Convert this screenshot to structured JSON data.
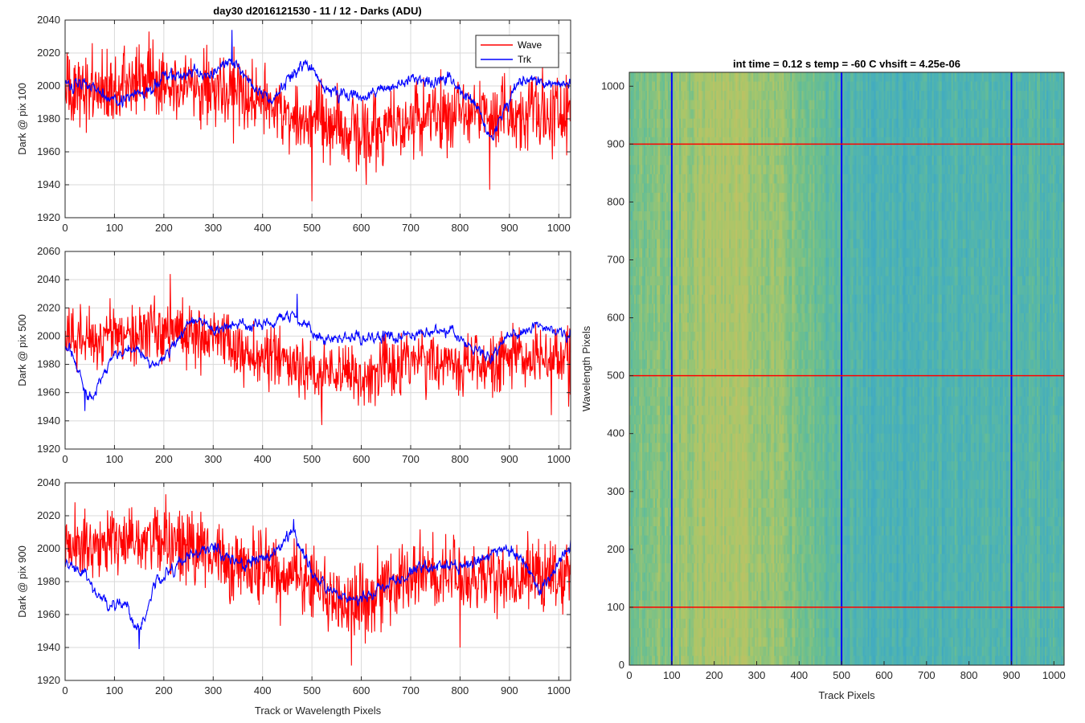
{
  "figure_title": "day30 d2016121530 - 11 / 12 - Darks (ADU)",
  "colors": {
    "wave": "#ff0000",
    "trk": "#0000ff",
    "grid": "#d9d9d9"
  },
  "chart_data": [
    {
      "type": "line",
      "ylabel": "Dark @ pix 100",
      "xlabel": "",
      "xlim": [
        0,
        1024
      ],
      "ylim": [
        1920,
        2040
      ],
      "xticks": [
        0,
        100,
        200,
        300,
        400,
        500,
        600,
        700,
        800,
        900,
        1000
      ],
      "yticks": [
        1920,
        1940,
        1960,
        1980,
        2000,
        2020,
        2040
      ],
      "grid": true,
      "legend": "top-right",
      "series": [
        {
          "name": "Wave",
          "color": "#ff0000",
          "mean": [
            [
              0,
              1996
            ],
            [
              100,
              2000
            ],
            [
              200,
              2004
            ],
            [
              300,
              2000
            ],
            [
              400,
              1990
            ],
            [
              500,
              1978
            ],
            [
              600,
              1970
            ],
            [
              700,
              1980
            ],
            [
              800,
              1985
            ],
            [
              900,
              1985
            ],
            [
              1024,
              1985
            ]
          ],
          "noise": 11,
          "spikes": [
            [
              55,
              2026
            ],
            [
              170,
              2033
            ],
            [
              500,
              1930
            ],
            [
              610,
              1940
            ],
            [
              860,
              1937
            ]
          ]
        },
        {
          "name": "Trk",
          "color": "#0000ff",
          "mean": [
            [
              0,
              2000
            ],
            [
              40,
              2003
            ],
            [
              100,
              1992
            ],
            [
              160,
              1995
            ],
            [
              200,
              2005
            ],
            [
              250,
              2007
            ],
            [
              300,
              2008
            ],
            [
              340,
              2015
            ],
            [
              380,
              2000
            ],
            [
              420,
              1992
            ],
            [
              470,
              2010
            ],
            [
              500,
              2012
            ],
            [
              530,
              1997
            ],
            [
              600,
              1993
            ],
            [
              700,
              2005
            ],
            [
              780,
              2003
            ],
            [
              820,
              1992
            ],
            [
              840,
              1985
            ],
            [
              860,
              1965
            ],
            [
              880,
              1978
            ],
            [
              920,
              2003
            ],
            [
              1024,
              2002
            ]
          ],
          "noise": 4,
          "spikes": [
            [
              338,
              2034
            ]
          ]
        }
      ]
    },
    {
      "type": "line",
      "ylabel": "Dark @ pix 500",
      "xlabel": "",
      "xlim": [
        0,
        1024
      ],
      "ylim": [
        1920,
        2060
      ],
      "xticks": [
        0,
        100,
        200,
        300,
        400,
        500,
        600,
        700,
        800,
        900,
        1000
      ],
      "yticks": [
        1920,
        1940,
        1960,
        1980,
        2000,
        2020,
        2040,
        2060
      ],
      "grid": true,
      "series": [
        {
          "name": "Wave",
          "color": "#ff0000",
          "mean": [
            [
              0,
              1997
            ],
            [
              100,
              2000
            ],
            [
              200,
              2005
            ],
            [
              300,
              2000
            ],
            [
              400,
              1985
            ],
            [
              500,
              1975
            ],
            [
              600,
              1970
            ],
            [
              700,
              1985
            ],
            [
              800,
              1980
            ],
            [
              900,
              1985
            ],
            [
              1024,
              1985
            ]
          ],
          "noise": 11,
          "spikes": [
            [
              213,
              2044
            ],
            [
              520,
              1937
            ],
            [
              985,
              1944
            ],
            [
              1020,
              1950
            ]
          ]
        },
        {
          "name": "Trk",
          "color": "#0000ff",
          "mean": [
            [
              0,
              1993
            ],
            [
              20,
              1985
            ],
            [
              40,
              1960
            ],
            [
              55,
              1955
            ],
            [
              80,
              1975
            ],
            [
              100,
              1988
            ],
            [
              150,
              1990
            ],
            [
              180,
              1978
            ],
            [
              220,
              1992
            ],
            [
              260,
              2014
            ],
            [
              300,
              2005
            ],
            [
              360,
              2008
            ],
            [
              420,
              2010
            ],
            [
              460,
              2015
            ],
            [
              520,
              1998
            ],
            [
              600,
              2000
            ],
            [
              700,
              2000
            ],
            [
              780,
              2004
            ],
            [
              820,
              1992
            ],
            [
              860,
              1985
            ],
            [
              900,
              2000
            ],
            [
              960,
              2007
            ],
            [
              1024,
              2000
            ]
          ],
          "noise": 4,
          "spikes": [
            [
              40,
              1947
            ],
            [
              470,
              2030
            ]
          ]
        }
      ]
    },
    {
      "type": "line",
      "ylabel": "Dark @ pix 900",
      "xlabel": "Track or Wavelength Pixels",
      "xlim": [
        0,
        1024
      ],
      "ylim": [
        1920,
        2040
      ],
      "xticks": [
        0,
        100,
        200,
        300,
        400,
        500,
        600,
        700,
        800,
        900,
        1000
      ],
      "yticks": [
        1920,
        1940,
        1960,
        1980,
        2000,
        2020,
        2040
      ],
      "grid": true,
      "series": [
        {
          "name": "Wave",
          "color": "#ff0000",
          "mean": [
            [
              0,
              2000
            ],
            [
              100,
              2005
            ],
            [
              200,
              2005
            ],
            [
              300,
              1995
            ],
            [
              400,
              1988
            ],
            [
              500,
              1980
            ],
            [
              580,
              1965
            ],
            [
              650,
              1975
            ],
            [
              700,
              1985
            ],
            [
              800,
              1982
            ],
            [
              900,
              1985
            ],
            [
              1024,
              1985
            ]
          ],
          "noise": 11,
          "spikes": [
            [
              580,
              1929
            ],
            [
              800,
              1940
            ]
          ]
        },
        {
          "name": "Trk",
          "color": "#0000ff",
          "mean": [
            [
              0,
              1990
            ],
            [
              40,
              1985
            ],
            [
              80,
              1965
            ],
            [
              120,
              1968
            ],
            [
              145,
              1952
            ],
            [
              160,
              1955
            ],
            [
              180,
              1978
            ],
            [
              220,
              1988
            ],
            [
              240,
              1995
            ],
            [
              300,
              2000
            ],
            [
              360,
              1990
            ],
            [
              420,
              1997
            ],
            [
              460,
              2010
            ],
            [
              500,
              1985
            ],
            [
              560,
              1970
            ],
            [
              620,
              1972
            ],
            [
              700,
              1985
            ],
            [
              760,
              1990
            ],
            [
              820,
              1990
            ],
            [
              880,
              2000
            ],
            [
              920,
              1995
            ],
            [
              960,
              1975
            ],
            [
              1000,
              1990
            ],
            [
              1024,
              2002
            ]
          ],
          "noise": 4,
          "spikes": [
            [
              150,
              1939
            ],
            [
              463,
              2018
            ]
          ]
        }
      ]
    },
    {
      "type": "heatmap",
      "title": "int time = 0.12 s    temp = -60 C    vhsift = 4.25e-06",
      "xlabel": "Track Pixels",
      "ylabel": "Wavelength Pixels",
      "xlim": [
        0,
        1024
      ],
      "ylim": [
        0,
        1024
      ],
      "xticks": [
        0,
        100,
        200,
        300,
        400,
        500,
        600,
        700,
        800,
        900,
        1000
      ],
      "yticks": [
        0,
        100,
        200,
        300,
        400,
        500,
        600,
        700,
        800,
        900,
        1000
      ],
      "vertical_lines": {
        "color": "#0000ff",
        "x": [
          100,
          500,
          900
        ]
      },
      "horizontal_lines": {
        "color": "#ff0000",
        "y": [
          100,
          500,
          900
        ]
      },
      "colormap": [
        "#3aa6c8",
        "#4cb2b5",
        "#6bbf8f",
        "#a9c66a",
        "#c7c061"
      ],
      "column_profile": [
        [
          0,
          0.5
        ],
        [
          150,
          0.72
        ],
        [
          250,
          0.78
        ],
        [
          330,
          0.68
        ],
        [
          420,
          0.5
        ],
        [
          560,
          0.25
        ],
        [
          640,
          0.2
        ],
        [
          760,
          0.28
        ],
        [
          900,
          0.3
        ],
        [
          1024,
          0.32
        ]
      ]
    }
  ]
}
